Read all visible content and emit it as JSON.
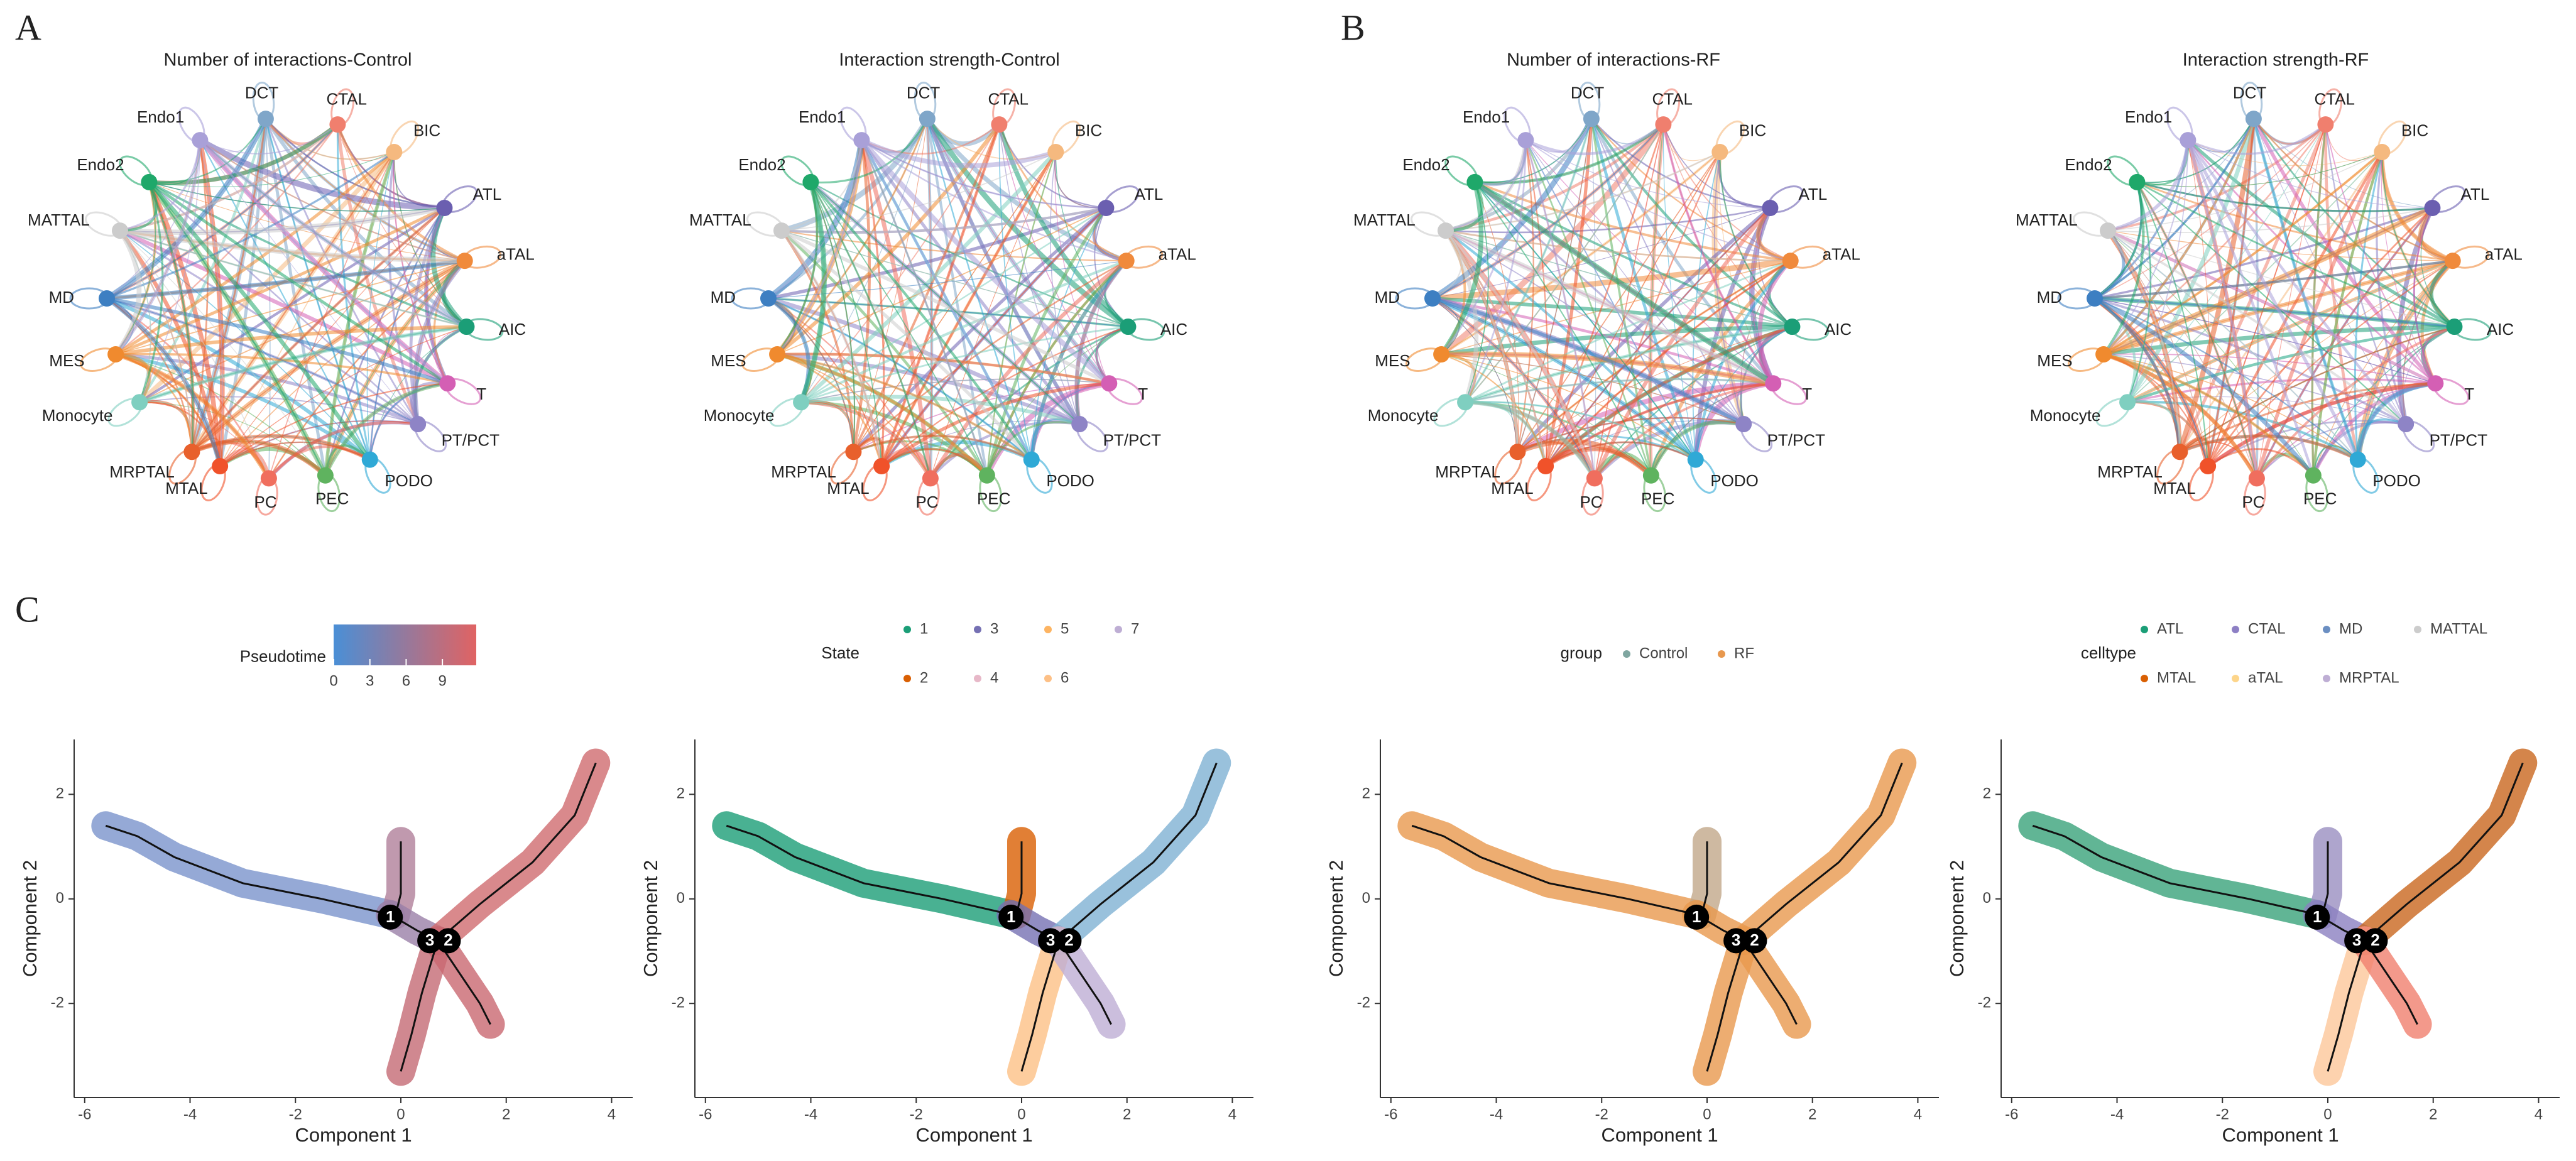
{
  "panel_labels": [
    "A",
    "B",
    "C"
  ],
  "chart_data": [
    {
      "type": "network",
      "title": "Number of interactions-Control",
      "nodes": [
        {
          "label": "DCT",
          "color": "#7fa6c9"
        },
        {
          "label": "CTAL",
          "color": "#f07f6e"
        },
        {
          "label": "BIC",
          "color": "#f5b97f"
        },
        {
          "label": "ATL",
          "color": "#6b5fb0"
        },
        {
          "label": "aTAL",
          "color": "#f08a3c"
        },
        {
          "label": "AIC",
          "color": "#1b9e77"
        },
        {
          "label": "T",
          "color": "#d45fb4"
        },
        {
          "label": "PT/PCT",
          "color": "#8e84c6"
        },
        {
          "label": "PODO",
          "color": "#2fa9d6"
        },
        {
          "label": "PEC",
          "color": "#5fb35f"
        },
        {
          "label": "PC",
          "color": "#f06e5e"
        },
        {
          "label": "MTAL",
          "color": "#f0522a"
        },
        {
          "label": "MRPTAL",
          "color": "#e8602c"
        },
        {
          "label": "Monocyte",
          "color": "#7fcfc0"
        },
        {
          "label": "MES",
          "color": "#f08a2e"
        },
        {
          "label": "MD",
          "color": "#3d7fc2"
        },
        {
          "label": "MATTAL",
          "color": "#cccccc"
        },
        {
          "label": "Endo2",
          "color": "#1fa86a"
        },
        {
          "label": "Endo1",
          "color": "#a9a0d8"
        }
      ]
    },
    {
      "type": "network",
      "title": "Interaction strength-Control",
      "nodes": [
        {
          "label": "DCT",
          "color": "#7fa6c9"
        },
        {
          "label": "CTAL",
          "color": "#f07f6e"
        },
        {
          "label": "BIC",
          "color": "#f5b97f"
        },
        {
          "label": "ATL",
          "color": "#6b5fb0"
        },
        {
          "label": "aTAL",
          "color": "#f08a3c"
        },
        {
          "label": "AIC",
          "color": "#1b9e77"
        },
        {
          "label": "T",
          "color": "#d45fb4"
        },
        {
          "label": "PT/PCT",
          "color": "#8e84c6"
        },
        {
          "label": "PODO",
          "color": "#2fa9d6"
        },
        {
          "label": "PEC",
          "color": "#5fb35f"
        },
        {
          "label": "PC",
          "color": "#f06e5e"
        },
        {
          "label": "MTAL",
          "color": "#f0522a"
        },
        {
          "label": "MRPTAL",
          "color": "#e8602c"
        },
        {
          "label": "Monocyte",
          "color": "#7fcfc0"
        },
        {
          "label": "MES",
          "color": "#f08a2e"
        },
        {
          "label": "MD",
          "color": "#3d7fc2"
        },
        {
          "label": "MATTAL",
          "color": "#cccccc"
        },
        {
          "label": "Endo2",
          "color": "#1fa86a"
        },
        {
          "label": "Endo1",
          "color": "#a9a0d8"
        }
      ]
    },
    {
      "type": "network",
      "title": "Number of interactions-RF",
      "nodes": [
        {
          "label": "DCT",
          "color": "#7fa6c9"
        },
        {
          "label": "CTAL",
          "color": "#f07f6e"
        },
        {
          "label": "BIC",
          "color": "#f5b97f"
        },
        {
          "label": "ATL",
          "color": "#6b5fb0"
        },
        {
          "label": "aTAL",
          "color": "#f08a3c"
        },
        {
          "label": "AIC",
          "color": "#1b9e77"
        },
        {
          "label": "T",
          "color": "#d45fb4"
        },
        {
          "label": "PT/PCT",
          "color": "#8e84c6"
        },
        {
          "label": "PODO",
          "color": "#2fa9d6"
        },
        {
          "label": "PEC",
          "color": "#5fb35f"
        },
        {
          "label": "PC",
          "color": "#f06e5e"
        },
        {
          "label": "MTAL",
          "color": "#f0522a"
        },
        {
          "label": "MRPTAL",
          "color": "#e8602c"
        },
        {
          "label": "Monocyte",
          "color": "#7fcfc0"
        },
        {
          "label": "MES",
          "color": "#f08a2e"
        },
        {
          "label": "MD",
          "color": "#3d7fc2"
        },
        {
          "label": "MATTAL",
          "color": "#cccccc"
        },
        {
          "label": "Endo2",
          "color": "#1fa86a"
        },
        {
          "label": "Endo1",
          "color": "#a9a0d8"
        }
      ]
    },
    {
      "type": "network",
      "title": "Interaction strength-RF",
      "nodes": [
        {
          "label": "DCT",
          "color": "#7fa6c9"
        },
        {
          "label": "CTAL",
          "color": "#f07f6e"
        },
        {
          "label": "BIC",
          "color": "#f5b97f"
        },
        {
          "label": "ATL",
          "color": "#6b5fb0"
        },
        {
          "label": "aTAL",
          "color": "#f08a3c"
        },
        {
          "label": "AIC",
          "color": "#1b9e77"
        },
        {
          "label": "T",
          "color": "#d45fb4"
        },
        {
          "label": "PT/PCT",
          "color": "#8e84c6"
        },
        {
          "label": "PODO",
          "color": "#2fa9d6"
        },
        {
          "label": "PEC",
          "color": "#5fb35f"
        },
        {
          "label": "PC",
          "color": "#f06e5e"
        },
        {
          "label": "MTAL",
          "color": "#f0522a"
        },
        {
          "label": "MRPTAL",
          "color": "#e8602c"
        },
        {
          "label": "Monocyte",
          "color": "#7fcfc0"
        },
        {
          "label": "MES",
          "color": "#f08a2e"
        },
        {
          "label": "MD",
          "color": "#3d7fc2"
        },
        {
          "label": "MATTAL",
          "color": "#cccccc"
        },
        {
          "label": "Endo2",
          "color": "#1fa86a"
        },
        {
          "label": "Endo1",
          "color": "#a9a0d8"
        }
      ]
    },
    {
      "type": "trajectory",
      "x_label": "Component 1",
      "y_label": "Component 2",
      "xlim": [
        -6.2,
        4.4
      ],
      "ylim": [
        -3.8,
        3.05
      ],
      "xticks": [
        -6,
        -4,
        -2,
        0,
        2,
        4
      ],
      "yticks": [
        -2,
        0,
        2
      ],
      "colorbar": {
        "title": "Pseudotime",
        "ticks": [
          0,
          3,
          6,
          9
        ],
        "lim": [
          0,
          11.8
        ],
        "colors": [
          "#4a8fd6",
          "#e06363"
        ]
      },
      "series": [
        {
          "color": "#7b93cc",
          "x": [
            -5.6,
            -5.0,
            -4.3,
            -3.0,
            -1.5,
            -0.2
          ],
          "y": [
            1.4,
            1.2,
            0.8,
            0.3,
            0.0,
            -0.3
          ]
        },
        {
          "color": "#b07f9a",
          "x": [
            0.0,
            0.0,
            0.0,
            -0.1
          ],
          "y": [
            1.1,
            0.6,
            0.1,
            -0.3
          ]
        },
        {
          "color": "#9a7fa8",
          "x": [
            -0.2,
            0.3,
            0.7
          ],
          "y": [
            -0.3,
            -0.6,
            -0.8
          ]
        },
        {
          "color": "#cf6b6f",
          "x": [
            0.7,
            1.5,
            2.5,
            3.3,
            3.7
          ],
          "y": [
            -0.8,
            -0.1,
            0.7,
            1.6,
            2.6
          ]
        },
        {
          "color": "#c46a74",
          "x": [
            0.7,
            0.4,
            0.2,
            0.0
          ],
          "y": [
            -0.8,
            -1.8,
            -2.6,
            -3.3
          ]
        },
        {
          "color": "#c96870",
          "x": [
            0.7,
            1.1,
            1.5,
            1.7
          ],
          "y": [
            -0.8,
            -1.4,
            -2.0,
            -2.4
          ]
        }
      ],
      "branch_points": {
        "labels": [
          "1",
          "3",
          "2"
        ],
        "x": [
          -0.2,
          0.55,
          0.9
        ],
        "y": [
          -0.35,
          -0.8,
          -0.8
        ]
      }
    },
    {
      "type": "trajectory",
      "x_label": "Component 1",
      "y_label": "Component 2",
      "xlim": [
        -6.2,
        4.4
      ],
      "ylim": [
        -3.8,
        3.05
      ],
      "xticks": [
        -6,
        -4,
        -2,
        0,
        2,
        4
      ],
      "yticks": [
        -2,
        0,
        2
      ],
      "legend": {
        "title": "State",
        "items": [
          {
            "label": "1",
            "color": "#1b9e77"
          },
          {
            "label": "2",
            "color": "#d95f02"
          },
          {
            "label": "3",
            "color": "#7570b3"
          },
          {
            "label": "4",
            "color": "#e7b8c8"
          },
          {
            "label": "5",
            "color": "#fdb462"
          },
          {
            "label": "6",
            "color": "#fdc086"
          },
          {
            "label": "7",
            "color": "#beaed4"
          }
        ]
      },
      "series": [
        {
          "color": "#1b9e77",
          "x": [
            -5.6,
            -5.0,
            -4.3,
            -3.0,
            -1.5,
            -0.2
          ],
          "y": [
            1.4,
            1.2,
            0.8,
            0.3,
            0.0,
            -0.3
          ]
        },
        {
          "color": "#d95f02",
          "x": [
            0.0,
            0.0,
            0.0,
            -0.1
          ],
          "y": [
            1.1,
            0.6,
            0.1,
            -0.3
          ]
        },
        {
          "color": "#7570b3",
          "x": [
            -0.2,
            0.3,
            0.7
          ],
          "y": [
            -0.3,
            -0.6,
            -0.8
          ]
        },
        {
          "color": "#80b1d3",
          "x": [
            0.7,
            1.5,
            2.5,
            3.3,
            3.7
          ],
          "y": [
            -0.8,
            -0.1,
            0.7,
            1.6,
            2.6
          ]
        },
        {
          "color": "#fdc086",
          "x": [
            0.7,
            0.4,
            0.2,
            0.0
          ],
          "y": [
            -0.8,
            -1.8,
            -2.6,
            -3.3
          ]
        },
        {
          "color": "#beaed4",
          "x": [
            0.7,
            1.1,
            1.5,
            1.7
          ],
          "y": [
            -0.8,
            -1.4,
            -2.0,
            -2.4
          ]
        }
      ],
      "branch_points": {
        "labels": [
          "1",
          "3",
          "2"
        ],
        "x": [
          -0.2,
          0.55,
          0.9
        ],
        "y": [
          -0.35,
          -0.8,
          -0.8
        ]
      }
    },
    {
      "type": "trajectory",
      "x_label": "Component 1",
      "y_label": "Component 2",
      "xlim": [
        -6.2,
        4.4
      ],
      "ylim": [
        -3.8,
        3.05
      ],
      "xticks": [
        -6,
        -4,
        -2,
        0,
        2,
        4
      ],
      "yticks": [
        -2,
        0,
        2
      ],
      "legend": {
        "title": "group",
        "items": [
          {
            "label": "Control",
            "color": "#7fa6a0"
          },
          {
            "label": "RF",
            "color": "#e8984e"
          }
        ]
      },
      "series": [
        {
          "color": "#e8984e",
          "x": [
            -5.6,
            -5.0,
            -4.3,
            -3.0,
            -1.5,
            -0.2
          ],
          "y": [
            1.4,
            1.2,
            0.8,
            0.3,
            0.0,
            -0.3
          ]
        },
        {
          "color": "#c2a88a",
          "x": [
            0.0,
            0.0,
            0.0,
            -0.1
          ],
          "y": [
            1.1,
            0.6,
            0.1,
            -0.3
          ]
        },
        {
          "color": "#e8984e",
          "x": [
            -0.2,
            0.3,
            0.7
          ],
          "y": [
            -0.3,
            -0.6,
            -0.8
          ]
        },
        {
          "color": "#e8984e",
          "x": [
            0.7,
            1.5,
            2.5,
            3.3,
            3.7
          ],
          "y": [
            -0.8,
            -0.1,
            0.7,
            1.6,
            2.6
          ]
        },
        {
          "color": "#e8984e",
          "x": [
            0.7,
            0.4,
            0.2,
            0.0
          ],
          "y": [
            -0.8,
            -1.8,
            -2.6,
            -3.3
          ]
        },
        {
          "color": "#e8984e",
          "x": [
            0.7,
            1.1,
            1.5,
            1.7
          ],
          "y": [
            -0.8,
            -1.4,
            -2.0,
            -2.4
          ]
        }
      ],
      "branch_points": {
        "labels": [
          "1",
          "3",
          "2"
        ],
        "x": [
          -0.2,
          0.55,
          0.9
        ],
        "y": [
          -0.35,
          -0.8,
          -0.8
        ]
      }
    },
    {
      "type": "trajectory",
      "x_label": "Component 1",
      "y_label": "Component 2",
      "xlim": [
        -6.2,
        4.4
      ],
      "ylim": [
        -3.8,
        3.05
      ],
      "xticks": [
        -6,
        -4,
        -2,
        0,
        2,
        4
      ],
      "yticks": [
        -2,
        0,
        2
      ],
      "legend": {
        "title": "celltype",
        "items": [
          {
            "label": "ATL",
            "color": "#1b9e77"
          },
          {
            "label": "CTAL",
            "color": "#8d7fc4"
          },
          {
            "label": "MD",
            "color": "#6b8fc2"
          },
          {
            "label": "MATTAL",
            "color": "#cccccc"
          },
          {
            "label": "MTAL",
            "color": "#d95f02"
          },
          {
            "label": "aTAL",
            "color": "#fdd58a"
          },
          {
            "label": "MRPTAL",
            "color": "#beaed4"
          }
        ]
      },
      "series": [
        {
          "color": "#3aa37a",
          "x": [
            -5.6,
            -5.0,
            -4.3,
            -3.0,
            -1.5,
            -0.2
          ],
          "y": [
            1.4,
            1.2,
            0.8,
            0.3,
            0.0,
            -0.3
          ]
        },
        {
          "color": "#9a8fc0",
          "x": [
            0.0,
            0.0,
            0.0,
            -0.1
          ],
          "y": [
            1.1,
            0.6,
            0.1,
            -0.3
          ]
        },
        {
          "color": "#8b7fc0",
          "x": [
            -0.2,
            0.3,
            0.7
          ],
          "y": [
            -0.3,
            -0.6,
            -0.8
          ]
        },
        {
          "color": "#c9661e",
          "x": [
            0.7,
            1.5,
            2.5,
            3.3,
            3.7
          ],
          "y": [
            -0.8,
            -0.1,
            0.7,
            1.6,
            2.6
          ]
        },
        {
          "color": "#fcc79a",
          "x": [
            0.7,
            0.4,
            0.2,
            0.0
          ],
          "y": [
            -0.8,
            -1.8,
            -2.6,
            -3.3
          ]
        },
        {
          "color": "#f07f6e",
          "x": [
            0.7,
            1.1,
            1.5,
            1.7
          ],
          "y": [
            -0.8,
            -1.4,
            -2.0,
            -2.4
          ]
        }
      ],
      "branch_points": {
        "labels": [
          "1",
          "3",
          "2"
        ],
        "x": [
          -0.2,
          0.55,
          0.9
        ],
        "y": [
          -0.35,
          -0.8,
          -0.8
        ]
      }
    }
  ]
}
